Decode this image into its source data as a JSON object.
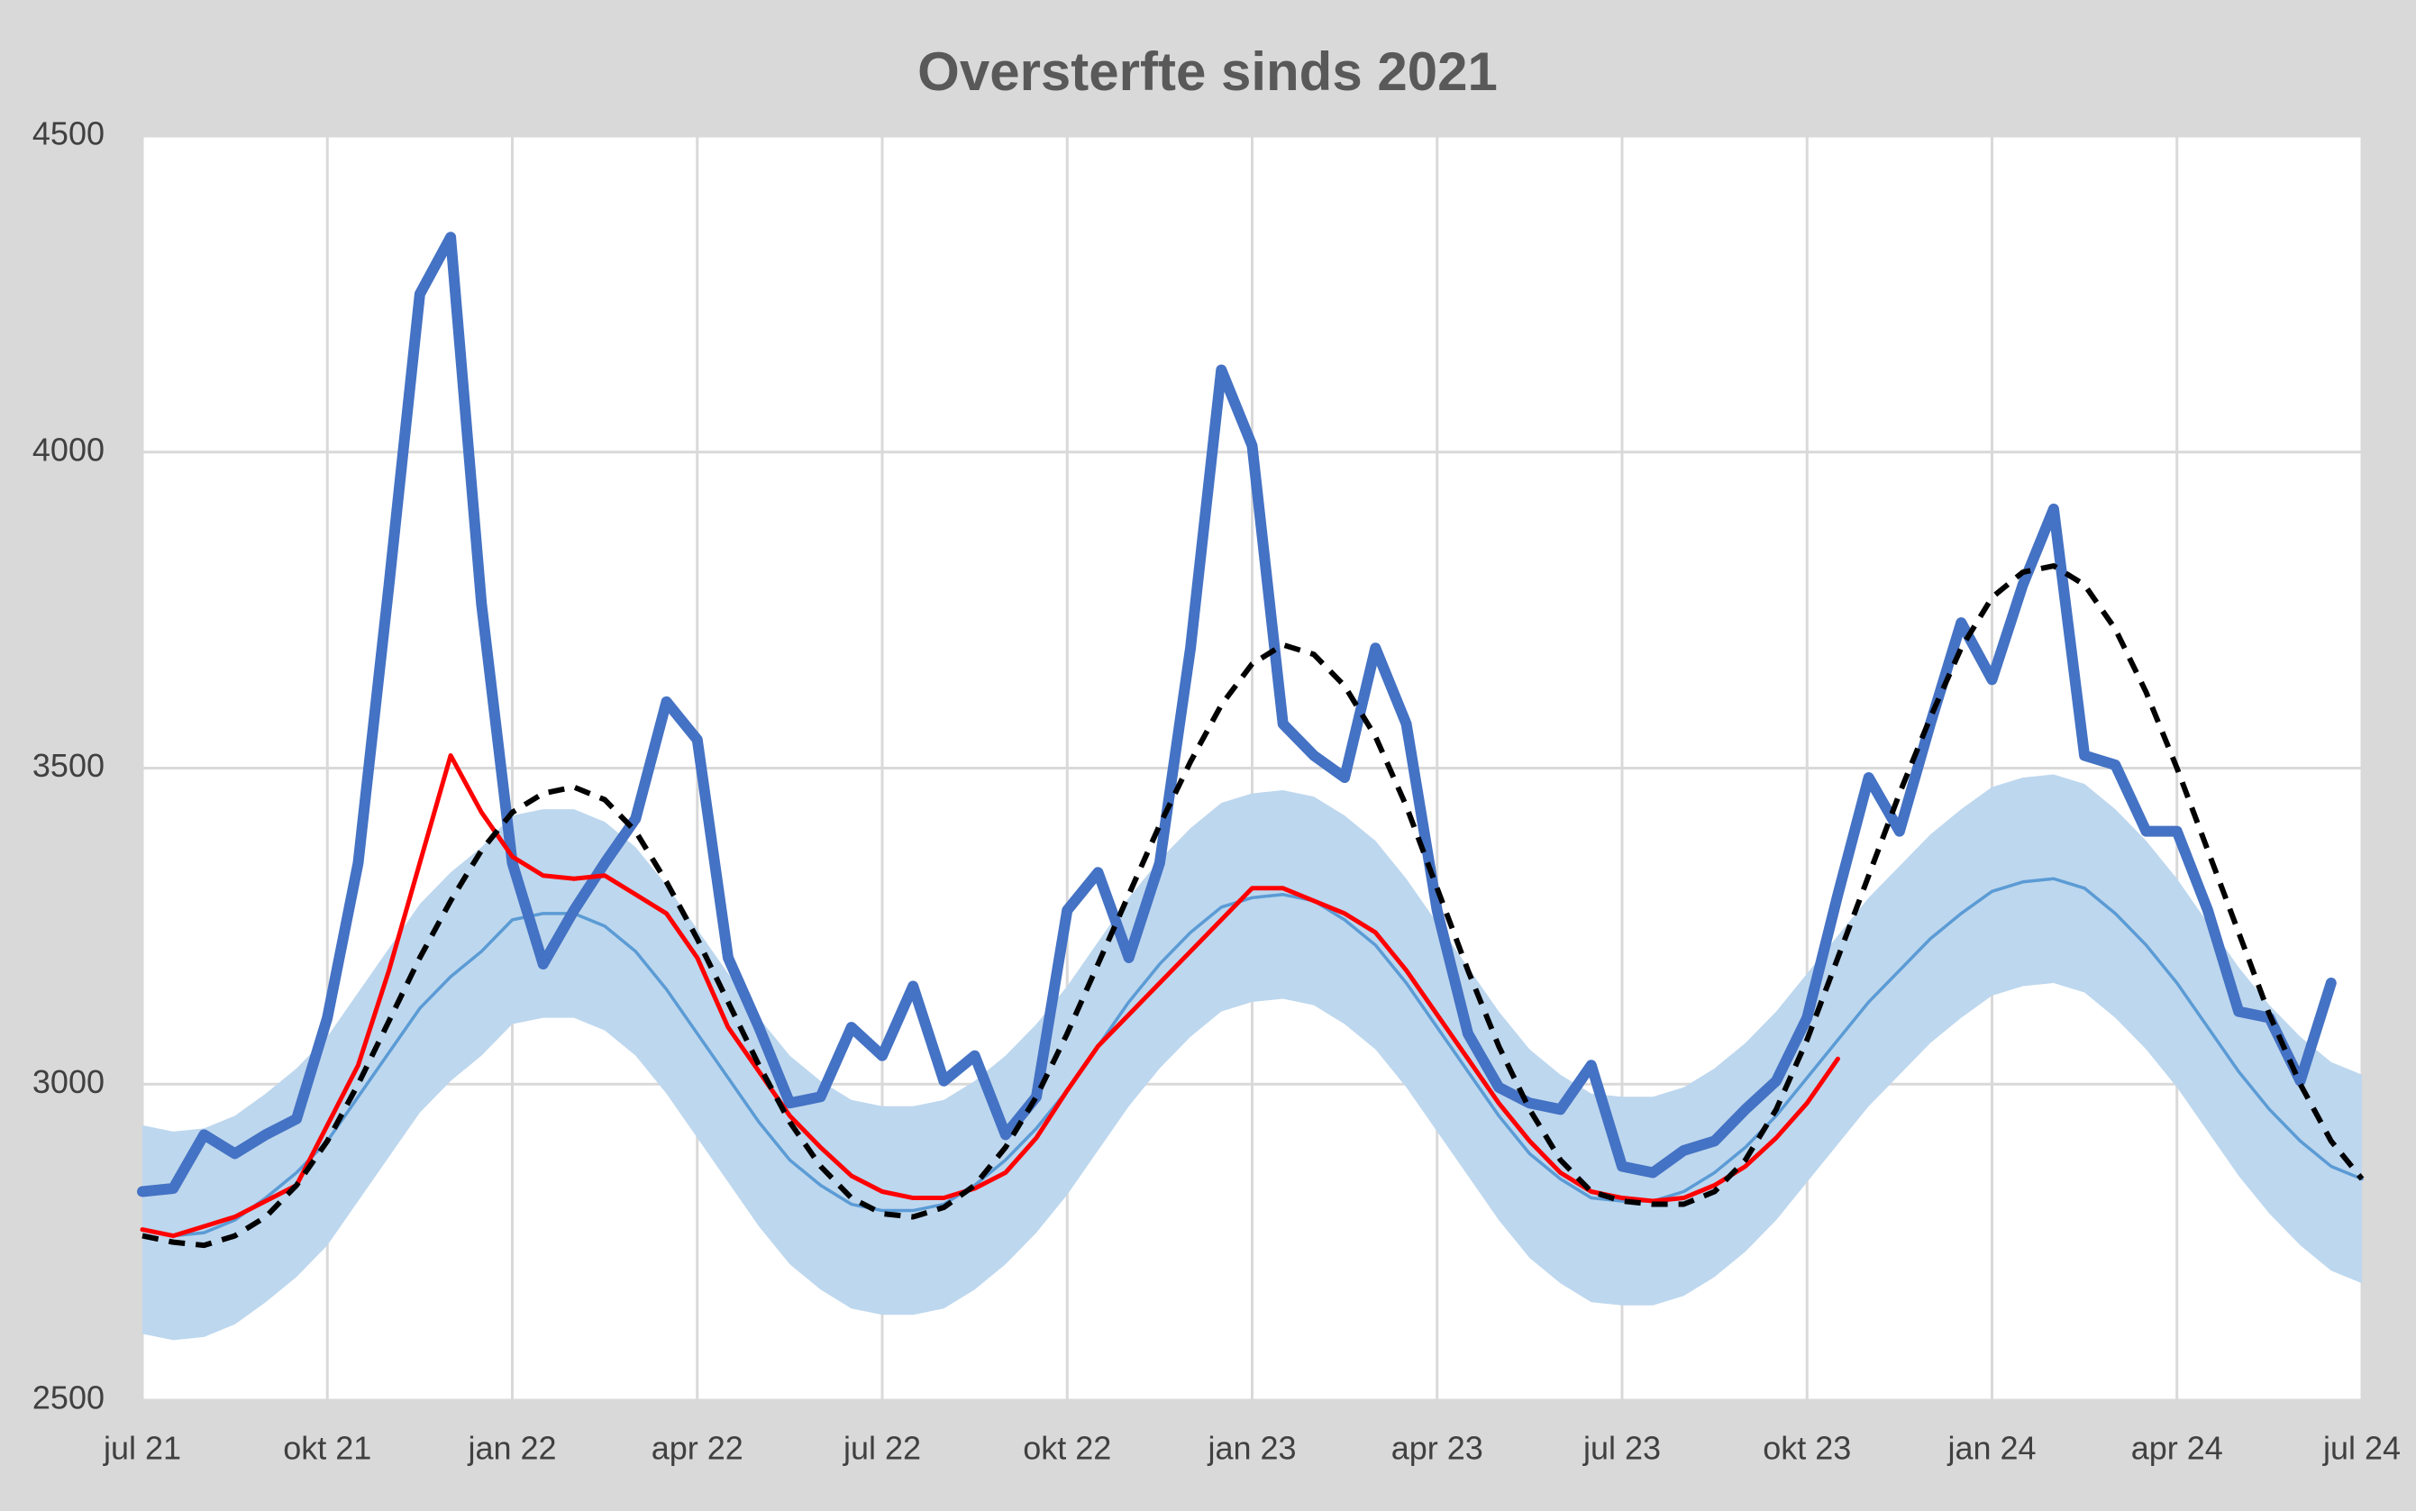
{
  "chart_data": {
    "type": "line",
    "title": "Oversterfte sinds 2021",
    "categories": [
      "jul 21",
      null,
      null,
      null,
      null,
      null,
      "okt 21",
      null,
      null,
      null,
      null,
      null,
      "jan 22",
      null,
      null,
      null,
      null,
      null,
      "apr 22",
      null,
      null,
      null,
      null,
      null,
      "jul 22",
      null,
      null,
      null,
      null,
      null,
      "okt 22",
      null,
      null,
      null,
      null,
      null,
      "jan 23",
      null,
      null,
      null,
      null,
      null,
      "apr 23",
      null,
      null,
      null,
      null,
      null,
      "jul 23",
      null,
      null,
      null,
      null,
      null,
      "okt 23",
      null,
      null,
      null,
      null,
      null,
      "jan 24",
      null,
      null,
      null,
      null,
      null,
      "apr 24",
      null,
      null,
      null,
      null,
      null,
      "jul 24"
    ],
    "ylim": [
      2500,
      4500
    ],
    "yticks": [
      2500,
      3000,
      3500,
      4000,
      4500
    ],
    "grid": true,
    "band": {
      "color": "#bdd7ee",
      "upper": [
        2935,
        2925,
        2930,
        2950,
        2985,
        3025,
        3075,
        3145,
        3215,
        3285,
        3335,
        3375,
        3425,
        3435,
        3435,
        3415,
        3375,
        3315,
        3245,
        3175,
        3105,
        3045,
        3005,
        2975,
        2965,
        2965,
        2975,
        3005,
        3045,
        3095,
        3155,
        3225,
        3295,
        3355,
        3405,
        3445,
        3460,
        3465,
        3455,
        3425,
        3385,
        3325,
        3255,
        3185,
        3115,
        3055,
        3015,
        2985,
        2980,
        2980,
        2995,
        3025,
        3065,
        3115,
        3175,
        3235,
        3295,
        3345,
        3395,
        3435,
        3470,
        3485,
        3490,
        3475,
        3435,
        3385,
        3325,
        3255,
        3185,
        3125,
        3075,
        3035,
        3015
      ],
      "lower": [
        2605,
        2595,
        2600,
        2620,
        2655,
        2695,
        2745,
        2815,
        2885,
        2955,
        3005,
        3045,
        3095,
        3105,
        3105,
        3085,
        3045,
        2985,
        2915,
        2845,
        2775,
        2715,
        2675,
        2645,
        2635,
        2635,
        2645,
        2675,
        2715,
        2765,
        2825,
        2895,
        2965,
        3025,
        3075,
        3115,
        3130,
        3135,
        3125,
        3095,
        3055,
        2995,
        2925,
        2855,
        2785,
        2725,
        2685,
        2655,
        2650,
        2650,
        2665,
        2695,
        2735,
        2785,
        2845,
        2905,
        2965,
        3015,
        3065,
        3105,
        3140,
        3155,
        3160,
        3145,
        3105,
        3055,
        2995,
        2925,
        2855,
        2795,
        2745,
        2705,
        2685
      ]
    },
    "series": [
      {
        "color": "#5b9bd5",
        "values": [
          2770,
          2760,
          2765,
          2785,
          2820,
          2860,
          2910,
          2980,
          3050,
          3120,
          3170,
          3210,
          3260,
          3270,
          3270,
          3250,
          3210,
          3150,
          3080,
          3010,
          2940,
          2880,
          2840,
          2810,
          2800,
          2800,
          2810,
          2840,
          2880,
          2930,
          2990,
          3060,
          3130,
          3190,
          3240,
          3280,
          3295,
          3300,
          3290,
          3260,
          3220,
          3160,
          3090,
          3020,
          2950,
          2890,
          2850,
          2820,
          2815,
          2815,
          2830,
          2860,
          2900,
          2950,
          3010,
          3070,
          3130,
          3180,
          3230,
          3270,
          3305,
          3320,
          3325,
          3310,
          3270,
          3220,
          3160,
          3090,
          3020,
          2960,
          2910,
          2870,
          2850
        ]
      },
      {
        "color": "#4472c4",
        "values": [
          2830,
          2835,
          2920,
          2890,
          2920,
          2945,
          3105,
          3350,
          3790,
          4250,
          4340,
          3760,
          3350,
          3190,
          3275,
          3350,
          3420,
          3605,
          3545,
          3200,
          3090,
          2970,
          2980,
          3090,
          3045,
          3155,
          3005,
          3045,
          2920,
          2980,
          3275,
          3335,
          3200,
          3350,
          3690,
          4130,
          4010,
          3570,
          3520,
          3485,
          3690,
          3570,
          3275,
          3080,
          2995,
          2970,
          2960,
          3030,
          2870,
          2860,
          2895,
          2910,
          2960,
          3005,
          3105,
          3300,
          3485,
          3400,
          3570,
          3730,
          3640,
          3790,
          3910,
          3520,
          3505,
          3400,
          3400,
          3275,
          3115,
          3105,
          3005,
          3160,
          null
        ]
      },
      {
        "color": "#ff0000",
        "values": [
          2770,
          2760,
          2775,
          2790,
          2815,
          2840,
          2935,
          3030,
          3180,
          3350,
          3520,
          3430,
          3360,
          3330,
          3325,
          3330,
          3300,
          3270,
          3200,
          3090,
          3020,
          2950,
          2900,
          2855,
          2830,
          2820,
          2820,
          2835,
          2860,
          2915,
          2990,
          3060,
          3110,
          3160,
          3210,
          3260,
          3310,
          3310,
          3290,
          3270,
          3240,
          3180,
          3110,
          3040,
          2970,
          2910,
          2860,
          2830,
          2820,
          2815,
          2820,
          2840,
          2870,
          2915,
          2970,
          3040,
          null,
          null,
          null,
          null,
          null,
          null,
          null,
          null,
          null,
          null,
          null,
          null,
          null,
          null,
          null,
          null,
          null
        ]
      },
      {
        "color": "#000000",
        "dashed": true,
        "values": [
          2760,
          2750,
          2745,
          2760,
          2790,
          2840,
          2910,
          3000,
          3100,
          3200,
          3290,
          3370,
          3430,
          3460,
          3470,
          3450,
          3400,
          3320,
          3230,
          3130,
          3030,
          2940,
          2870,
          2820,
          2795,
          2790,
          2805,
          2840,
          2900,
          2980,
          3080,
          3190,
          3300,
          3410,
          3510,
          3600,
          3665,
          3695,
          3680,
          3630,
          3550,
          3440,
          3310,
          3180,
          3060,
          2960,
          2880,
          2830,
          2815,
          2810,
          2810,
          2830,
          2880,
          2960,
          3070,
          3200,
          3330,
          3460,
          3580,
          3690,
          3770,
          3810,
          3820,
          3790,
          3720,
          3620,
          3500,
          3370,
          3240,
          3110,
          3000,
          2910,
          2850
        ]
      }
    ]
  }
}
